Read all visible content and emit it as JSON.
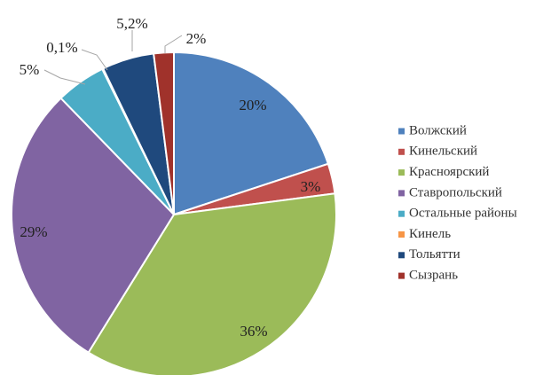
{
  "chart_data": {
    "type": "pie",
    "start_angle_deg": 0,
    "direction": "clockwise",
    "legend_position": "right",
    "series": [
      {
        "name": "Волжский",
        "value": 20,
        "label": "20%",
        "color": "#4f81bd"
      },
      {
        "name": "Кинельский",
        "value": 3,
        "label": "3%",
        "color": "#c0504d"
      },
      {
        "name": "Красноярский",
        "value": 36,
        "label": "36%",
        "color": "#9bbb59"
      },
      {
        "name": "Ставропольский",
        "value": 29,
        "label": "29%",
        "color": "#8064a2"
      },
      {
        "name": "Остальные районы",
        "value": 5,
        "label": "5%",
        "color": "#4bacc6"
      },
      {
        "name": "Кинель",
        "value": 0.1,
        "label": "0,1%",
        "color": "#f79646"
      },
      {
        "name": "Тольятти",
        "value": 5.2,
        "label": "5,2%",
        "color": "#1f497d"
      },
      {
        "name": "Сызрань",
        "value": 2,
        "label": "2%",
        "color": "#a0322b"
      }
    ]
  }
}
